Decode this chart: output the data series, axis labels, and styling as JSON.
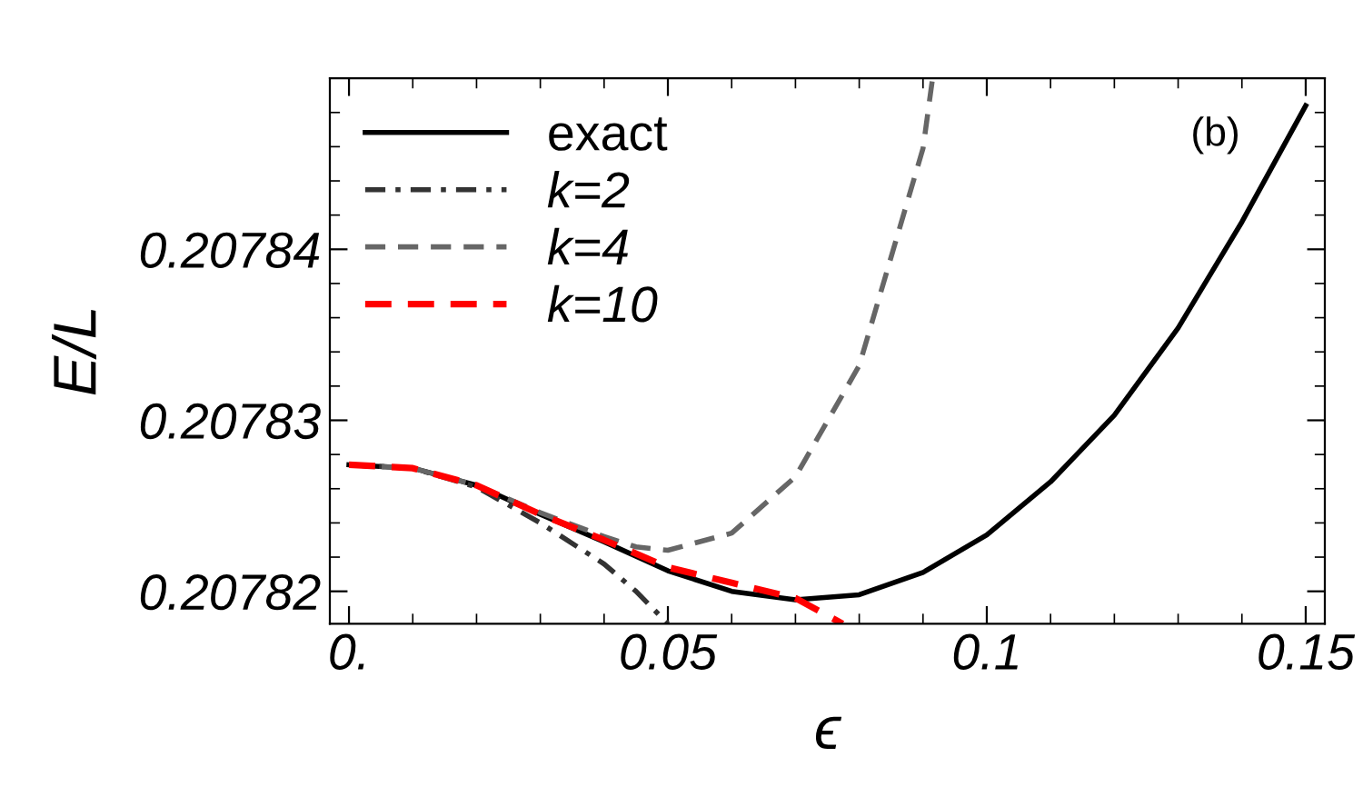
{
  "chart_data": {
    "type": "line",
    "xlabel": "ϵ",
    "ylabel": "E/L",
    "annotations": [
      "(b)"
    ],
    "xlim": [
      -0.003,
      0.153
    ],
    "ylim": [
      0.2078181,
      0.20785
    ],
    "xticks": [
      {
        "value": 0,
        "label": "0."
      },
      0.05,
      0.1,
      0.15
    ],
    "yticks": [
      0.20782,
      0.20783,
      0.20784
    ],
    "grid": false,
    "legend": "top left",
    "marker": "none",
    "series": [
      {
        "name": "exact",
        "color": "#000000",
        "line_style": "solid",
        "x": [
          0,
          0.01,
          0.02,
          0.03,
          0.04,
          0.05,
          0.06,
          0.07,
          0.08,
          0.09,
          0.1,
          0.11,
          0.12,
          0.13,
          0.14,
          0.15
        ],
        "values": [
          0.2078274,
          0.2078272,
          0.2078262,
          0.2078245,
          0.2078229,
          0.2078212,
          0.20782,
          0.2078195,
          0.2078198,
          0.2078211,
          0.2078233,
          0.2078264,
          0.2078303,
          0.2078354,
          0.2078416,
          0.2078484
        ]
      },
      {
        "name": "k=2",
        "color": "#333333",
        "line_style": "dashdot",
        "x": [
          0,
          0.01,
          0.02,
          0.03,
          0.04,
          0.045,
          0.05
        ],
        "values": [
          0.2078274,
          0.2078272,
          0.2078261,
          0.207824,
          0.2078216,
          0.20782,
          0.2078181
        ]
      },
      {
        "name": "k=4",
        "color": "#666666",
        "line_style": "dashed",
        "x": [
          0,
          0.01,
          0.02,
          0.03,
          0.04,
          0.045,
          0.05,
          0.06,
          0.07,
          0.08,
          0.09,
          0.0915
        ],
        "values": [
          0.2078274,
          0.2078272,
          0.2078262,
          0.2078246,
          0.2078232,
          0.2078226,
          0.2078224,
          0.2078234,
          0.2078267,
          0.2078332,
          0.2078459,
          0.20785
        ]
      },
      {
        "name": "k=10",
        "color": "#ff0000",
        "line_style": "dashed",
        "x": [
          0,
          0.01,
          0.02,
          0.03,
          0.04,
          0.05,
          0.06,
          0.07,
          0.0774
        ],
        "values": [
          0.2078274,
          0.2078272,
          0.2078262,
          0.2078245,
          0.207823,
          0.2078214,
          0.2078205,
          0.2078196,
          0.2078181
        ]
      }
    ]
  }
}
